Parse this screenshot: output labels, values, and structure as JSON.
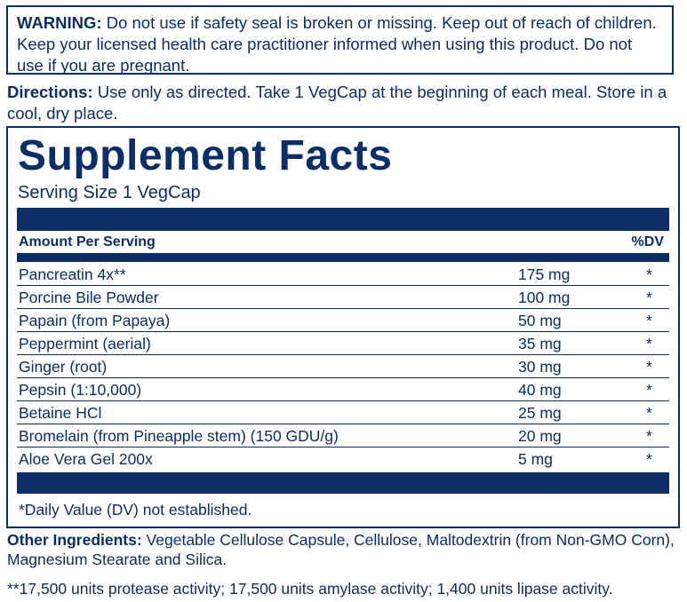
{
  "warning": {
    "label": "WARNING:",
    "text": " Do not use if safety seal is broken or missing. Keep out of reach of children. Keep your licensed health care practitioner informed when using this product. Do not use if you are pregnant."
  },
  "directions": {
    "label": "Directions:",
    "text": " Use only as directed. Take 1 VegCap at the beginning of each meal. Store in a cool, dry place."
  },
  "facts": {
    "title": "Supplement Facts",
    "serving_size": "Serving Size 1 VegCap",
    "amount_header": "Amount Per Serving",
    "dv_header": "%DV",
    "rows": [
      {
        "name": "Pancreatin 4x**",
        "amount": "175 mg",
        "dv": "*"
      },
      {
        "name": "Porcine Bile Powder",
        "amount": "100 mg",
        "dv": "*"
      },
      {
        "name": "Papain (from Papaya)",
        "amount": "50 mg",
        "dv": "*"
      },
      {
        "name": "Peppermint (aerial)",
        "amount": "35 mg",
        "dv": "*"
      },
      {
        "name": "Ginger (root)",
        "amount": "30 mg",
        "dv": "*"
      },
      {
        "name": "Pepsin (1:10,000)",
        "amount": "40 mg",
        "dv": "*"
      },
      {
        "name": "Betaine HCl",
        "amount": "25 mg",
        "dv": "*"
      },
      {
        "name": "Bromelain (from Pineapple stem) (150 GDU/g)",
        "amount": "20 mg",
        "dv": "*"
      },
      {
        "name": "Aloe Vera Gel 200x",
        "amount": "5 mg",
        "dv": "*"
      }
    ],
    "footnote": "*Daily Value (DV) not established."
  },
  "other_ingredients": {
    "label": "Other Ingredients:",
    "text": " Vegetable Cellulose Capsule, Cellulose, Maltodextrin (from Non-GMO Corn), Magnesium Stearate and Silica."
  },
  "activity_note": "**17,500 units protease activity; 17,500 units amylase activity; 1,400 units lipase activity.",
  "colors": {
    "primary": "#0b2e66",
    "background": "#ffffff"
  }
}
